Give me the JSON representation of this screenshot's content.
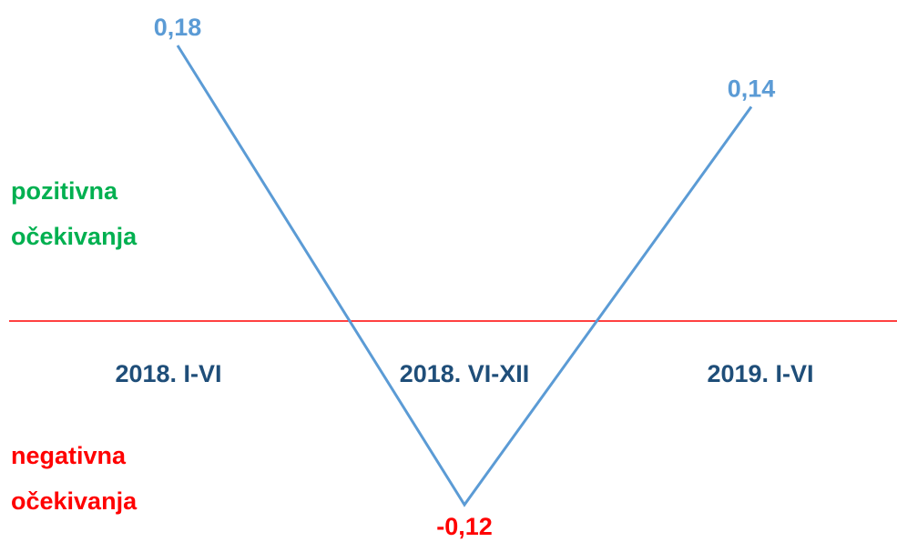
{
  "chart_data": {
    "type": "line",
    "categories": [
      "2018. I-VI",
      "2018. VI-XII",
      "2019. I-VI"
    ],
    "category_color": "#1f4e79",
    "series": [
      {
        "color": "#5b9bd5",
        "values": [
          0.18,
          -0.12,
          0.14
        ],
        "value_labels": [
          "0,18",
          "-0,12",
          "0,14"
        ],
        "value_label_colors": [
          "#5b9bd5",
          "#ff0000",
          "#5b9bd5"
        ]
      }
    ],
    "zero_line_color": "#ff0000",
    "annotations": [
      {
        "lines": [
          "pozitivna",
          "očekivanja"
        ],
        "color": "#00b050"
      },
      {
        "lines": [
          "negativna",
          "očekivanja"
        ],
        "color": "#ff0000"
      }
    ]
  }
}
